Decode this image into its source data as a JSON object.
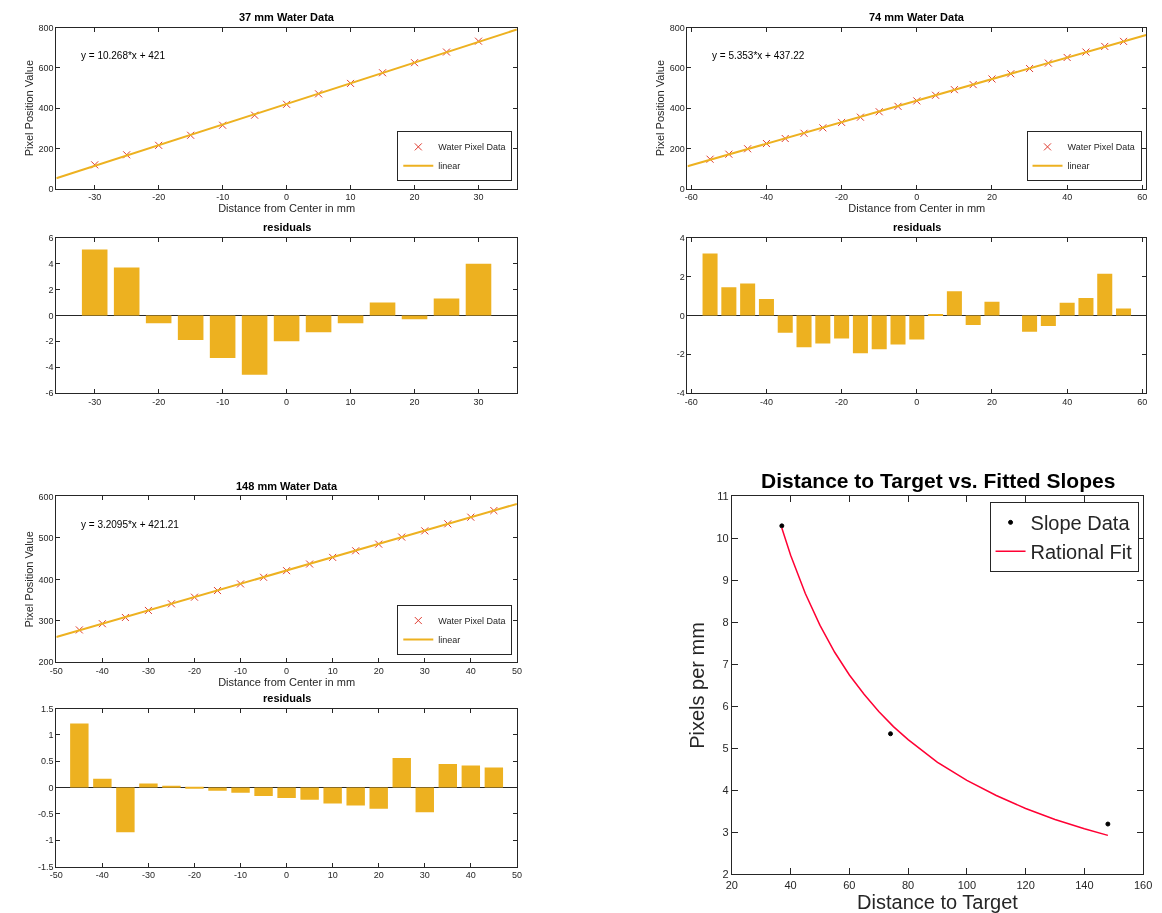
{
  "chart_data": [
    {
      "type": "scatter",
      "title": "37 mm Water Data",
      "xlabel": "Distance from Center in mm",
      "ylabel": "Pixel Position Value",
      "annotations": [
        "y = 10.268*x + 421"
      ],
      "legend": "bottom right",
      "xlim": [
        -36,
        36
      ],
      "ylim": [
        0,
        800
      ],
      "xticks": [
        -30,
        -20,
        -10,
        0,
        10,
        20,
        30
      ],
      "yticks": [
        0,
        200,
        400,
        600,
        800
      ],
      "x": [
        -30,
        -25,
        -20,
        -15,
        -10,
        -5,
        0,
        5,
        10,
        15,
        20,
        25,
        30
      ],
      "series": [
        {
          "name": "Water Pixel Data",
          "marker": "cross",
          "color": "#e03c31",
          "values": [
            118,
            168,
            215,
            265,
            315,
            365,
            419,
            471,
            523,
            576,
            626,
            679,
            733
          ]
        },
        {
          "name": "linear",
          "type": "line",
          "marker": "none",
          "color": "#edb120",
          "x": [
            -36,
            36
          ],
          "values": [
            51,
            791
          ]
        }
      ]
    },
    {
      "type": "scatter",
      "title": "74 mm Water Data",
      "xlabel": "Distance from Center in mm",
      "ylabel": "Pixel Position Value",
      "annotations": [
        "y = 5.353*x + 437.22"
      ],
      "legend": "bottom right",
      "xlim": [
        -61,
        61
      ],
      "ylim": [
        0,
        800
      ],
      "xticks": [
        -60,
        -40,
        -20,
        0,
        20,
        40,
        60
      ],
      "yticks": [
        0,
        200,
        400,
        600,
        800
      ],
      "x": [
        -55,
        -50,
        -45,
        -40,
        -35,
        -30,
        -25,
        -20,
        -15,
        -10,
        -5,
        0,
        5,
        10,
        15,
        20,
        25,
        30,
        35,
        40,
        45,
        50,
        55
      ],
      "series": [
        {
          "name": "Water Pixel Data",
          "marker": "cross",
          "color": "#e03c31",
          "values": [
            146,
            171,
            198,
            224,
            249,
            275,
            302,
            329,
            355,
            382,
            409,
            436,
            464,
            492,
            517,
            545,
            571,
            597,
            624,
            652,
            679,
            707,
            732
          ]
        },
        {
          "name": "linear",
          "type": "line",
          "marker": "none",
          "color": "#edb120",
          "x": [
            -61,
            61
          ],
          "values": [
            111,
            764
          ]
        }
      ]
    },
    {
      "type": "bar",
      "title": "residuals",
      "color": "#edb120",
      "xlim": [
        -36,
        36
      ],
      "ylim": [
        -6,
        6
      ],
      "xticks": [
        -30,
        -20,
        -10,
        0,
        10,
        20,
        30
      ],
      "yticks": [
        -6,
        -4,
        -2,
        0,
        2,
        4,
        6
      ],
      "x": [
        -30,
        -25,
        -20,
        -15,
        -10,
        -5,
        0,
        5,
        10,
        15,
        20,
        25,
        30
      ],
      "values": [
        5.1,
        3.7,
        -0.6,
        -1.9,
        -3.3,
        -4.6,
        -2.0,
        -1.3,
        -0.6,
        1.0,
        -0.3,
        1.3,
        4.0
      ]
    },
    {
      "type": "bar",
      "title": "residuals",
      "color": "#edb120",
      "xlim": [
        -61,
        61
      ],
      "ylim": [
        -4,
        4
      ],
      "xticks": [
        -60,
        -40,
        -20,
        0,
        20,
        40,
        60
      ],
      "yticks": [
        -4,
        -2,
        0,
        2,
        4
      ],
      "x": [
        -55,
        -50,
        -45,
        -40,
        -35,
        -30,
        -25,
        -20,
        -15,
        -10,
        -5,
        0,
        5,
        10,
        15,
        20,
        25,
        30,
        35,
        40,
        45,
        50,
        55
      ],
      "values": [
        3.2,
        1.45,
        1.65,
        0.85,
        -0.9,
        -1.65,
        -1.45,
        -1.2,
        -1.95,
        -1.75,
        -1.5,
        -1.25,
        0.05,
        1.25,
        -0.5,
        0.7,
        0.0,
        -0.85,
        -0.55,
        0.65,
        0.9,
        2.15,
        0.35
      ]
    },
    {
      "type": "scatter",
      "title": "148 mm Water Data",
      "xlabel": "Distance from Center in mm",
      "ylabel": "Pixel Position Value",
      "annotations": [
        "y = 3.2095*x + 421.21"
      ],
      "legend": "bottom right",
      "xlim": [
        -50,
        50
      ],
      "ylim": [
        200,
        600
      ],
      "xticks": [
        -50,
        -40,
        -30,
        -20,
        -10,
        0,
        10,
        20,
        30,
        40,
        50
      ],
      "yticks": [
        200,
        300,
        400,
        500,
        600
      ],
      "x": [
        -45,
        -40,
        -35,
        -30,
        -25,
        -20,
        -15,
        -10,
        -5,
        0,
        5,
        10,
        15,
        20,
        25,
        30,
        35,
        40,
        45
      ],
      "series": [
        {
          "name": "Water Pixel Data",
          "marker": "cross",
          "color": "#e03c31",
          "values": [
            278,
            293,
            308,
            325,
            341,
            357,
            373,
            389,
            405,
            421,
            437,
            453,
            469,
            485,
            502,
            517,
            534,
            550,
            566
          ]
        },
        {
          "name": "linear",
          "type": "line",
          "marker": "none",
          "color": "#edb120",
          "x": [
            -50,
            50
          ],
          "values": [
            261,
            582
          ]
        }
      ]
    },
    {
      "type": "scatter",
      "title": "Distance to Target vs. Fitted Slopes",
      "xlabel": "Distance to Target",
      "ylabel": "Pixels per mm",
      "legend": "top right",
      "xlim": [
        20,
        160
      ],
      "ylim": [
        2,
        11
      ],
      "xticks": [
        20,
        40,
        60,
        80,
        100,
        120,
        140,
        160
      ],
      "yticks": [
        2,
        3,
        4,
        5,
        6,
        7,
        8,
        9,
        10,
        11
      ],
      "series": [
        {
          "name": "Slope Data",
          "marker": "circle",
          "color": "#000000",
          "x": [
            37,
            74,
            148
          ],
          "values": [
            10.3,
            5.35,
            3.2
          ]
        },
        {
          "name": "Rational Fit",
          "type": "line",
          "marker": "none",
          "color": "#ff0033",
          "x": [
            37,
            40,
            45,
            50,
            55,
            60,
            65,
            70,
            75,
            80,
            90,
            100,
            110,
            120,
            130,
            140,
            148
          ],
          "values": [
            10.25,
            9.6,
            8.69,
            7.93,
            7.29,
            6.75,
            6.29,
            5.88,
            5.52,
            5.21,
            4.67,
            4.24,
            3.88,
            3.57,
            3.31,
            3.09,
            2.93
          ]
        }
      ]
    },
    {
      "type": "bar",
      "title": "residuals",
      "color": "#edb120",
      "xlim": [
        -50,
        50
      ],
      "ylim": [
        -1.5,
        1.5
      ],
      "xticks": [
        -50,
        -40,
        -30,
        -20,
        -10,
        0,
        10,
        20,
        30,
        40,
        50
      ],
      "yticks": [
        -1.5,
        -1,
        -0.5,
        0,
        0.5,
        1,
        1.5
      ],
      "x": [
        -45,
        -40,
        -35,
        -30,
        -25,
        -20,
        -15,
        -10,
        -5,
        0,
        5,
        10,
        15,
        20,
        25,
        30,
        35,
        40,
        45
      ],
      "values": [
        1.22,
        0.17,
        -0.85,
        0.08,
        0.03,
        -0.02,
        -0.06,
        -0.1,
        -0.16,
        -0.2,
        -0.23,
        -0.3,
        -0.34,
        -0.4,
        0.56,
        -0.47,
        0.45,
        0.42,
        0.38
      ]
    }
  ]
}
